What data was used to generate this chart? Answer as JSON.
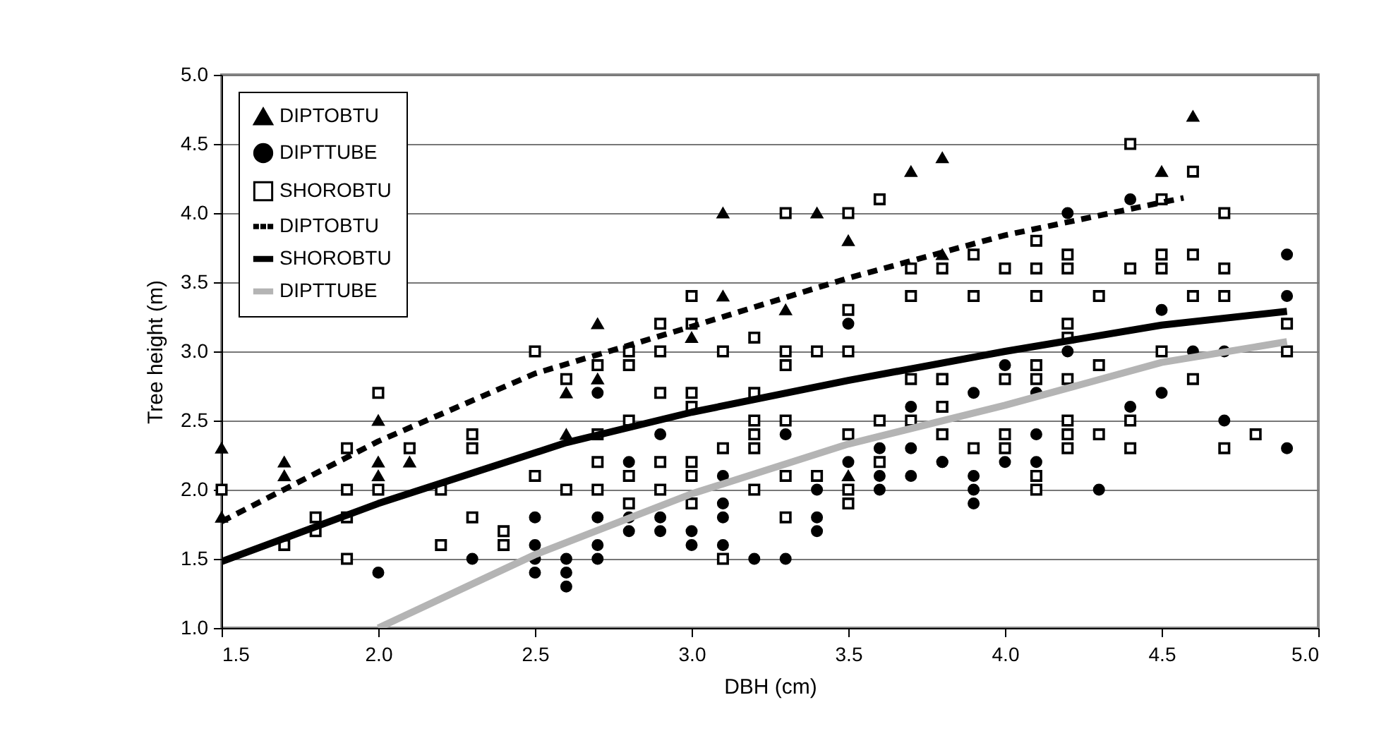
{
  "chart_data": {
    "type": "scatter",
    "xlabel": "DBH (cm)",
    "ylabel": "Tree height (m)",
    "xlim": [
      1.5,
      5.0
    ],
    "ylim": [
      1.0,
      5.0
    ],
    "xticks": [
      {
        "value": 1.5,
        "label": "1.5"
      },
      {
        "value": 2,
        "label": "2.0"
      },
      {
        "value": 2.5,
        "label": "2.5"
      },
      {
        "value": 3,
        "label": "3.0"
      },
      {
        "value": 3.5,
        "label": "3.5"
      },
      {
        "value": 4,
        "label": "4.0"
      },
      {
        "value": 4.5,
        "label": "4.5"
      },
      {
        "value": 5,
        "label": "5.0"
      }
    ],
    "yticks": [
      {
        "value": 1,
        "label": "1.0"
      },
      {
        "value": 1.5,
        "label": "1.5"
      },
      {
        "value": 2,
        "label": "2.0"
      },
      {
        "value": 2.5,
        "label": "2.5"
      },
      {
        "value": 3,
        "label": "3.0"
      },
      {
        "value": 3.5,
        "label": "3.5"
      },
      {
        "value": 4,
        "label": "4.0"
      },
      {
        "value": 4.5,
        "label": "4.5"
      },
      {
        "value": 5,
        "label": "5.0"
      }
    ],
    "grid": "y",
    "legend": "top left",
    "series": [
      {
        "name": "DIPTOBTU",
        "marker": "triangle",
        "color": "#000000",
        "x": [
          1.5,
          1.5,
          1.7,
          1.7,
          2.0,
          2.0,
          2.0,
          2.1,
          2.6,
          2.6,
          2.7,
          2.7,
          3.0,
          3.1,
          3.1,
          3.3,
          3.4,
          3.5,
          3.5,
          3.7,
          3.8,
          3.8,
          4.5,
          4.6
        ],
        "values": [
          2.3,
          1.8,
          2.2,
          2.1,
          2.5,
          2.2,
          2.1,
          2.2,
          2.4,
          2.7,
          3.2,
          2.8,
          3.1,
          3.4,
          4.0,
          3.3,
          4.0,
          3.8,
          2.1,
          4.3,
          4.4,
          3.7,
          4.3,
          4.7
        ]
      },
      {
        "name": "DIPTTUBE",
        "marker": "circle",
        "color": "#000000",
        "x": [
          2.0,
          2.3,
          2.5,
          2.5,
          2.5,
          2.5,
          2.6,
          2.6,
          2.6,
          2.7,
          2.7,
          2.7,
          2.7,
          2.8,
          2.8,
          2.8,
          2.9,
          2.9,
          2.9,
          3.0,
          3.0,
          3.1,
          3.1,
          3.1,
          3.1,
          3.2,
          3.3,
          3.3,
          3.4,
          3.4,
          3.4,
          3.5,
          3.5,
          3.6,
          3.6,
          3.6,
          3.7,
          3.7,
          3.7,
          3.8,
          3.8,
          3.9,
          3.9,
          3.9,
          3.9,
          4.0,
          4.0,
          4.1,
          4.1,
          4.1,
          4.2,
          4.2,
          4.3,
          4.4,
          4.4,
          4.5,
          4.5,
          4.6,
          4.7,
          4.7,
          4.9,
          4.9,
          4.9
        ],
        "values": [
          1.4,
          1.5,
          1.8,
          1.6,
          1.5,
          1.4,
          1.5,
          1.4,
          1.3,
          2.7,
          1.8,
          1.6,
          1.5,
          2.2,
          1.8,
          1.7,
          2.4,
          1.8,
          1.7,
          1.7,
          1.6,
          2.1,
          1.9,
          1.8,
          1.6,
          1.5,
          2.4,
          1.5,
          2.0,
          1.8,
          1.7,
          3.2,
          2.2,
          2.3,
          2.1,
          2.0,
          2.6,
          2.3,
          2.1,
          2.2,
          2.2,
          2.7,
          2.1,
          2.0,
          1.9,
          2.9,
          2.2,
          2.7,
          2.4,
          2.2,
          4.0,
          3.0,
          2.0,
          4.1,
          2.6,
          3.3,
          2.7,
          3.0,
          3.0,
          2.5,
          3.7,
          3.4,
          2.3
        ]
      },
      {
        "name": "SHOROBTU",
        "marker": "square",
        "color": "#000000",
        "x": [
          1.5,
          1.7,
          1.8,
          1.8,
          1.9,
          1.9,
          1.9,
          1.9,
          2.0,
          2.0,
          2.1,
          2.2,
          2.2,
          2.3,
          2.3,
          2.3,
          2.4,
          2.4,
          2.5,
          2.5,
          2.6,
          2.6,
          2.7,
          2.7,
          2.7,
          2.7,
          2.8,
          2.8,
          2.8,
          2.8,
          2.8,
          2.9,
          2.9,
          2.9,
          2.9,
          2.9,
          3.0,
          3.0,
          3.0,
          3.0,
          3.0,
          3.0,
          3.0,
          3.1,
          3.1,
          3.1,
          3.2,
          3.2,
          3.2,
          3.2,
          3.2,
          3.2,
          3.3,
          3.3,
          3.3,
          3.3,
          3.3,
          3.3,
          3.4,
          3.4,
          3.5,
          3.5,
          3.5,
          3.5,
          3.5,
          3.5,
          3.6,
          3.6,
          3.6,
          3.7,
          3.7,
          3.7,
          3.7,
          3.8,
          3.8,
          3.8,
          3.8,
          3.8,
          3.8,
          3.8,
          3.9,
          3.9,
          3.9,
          4.0,
          4.0,
          4.0,
          4.0,
          4.1,
          4.1,
          4.1,
          4.1,
          4.1,
          4.1,
          4.1,
          4.2,
          4.2,
          4.2,
          4.2,
          4.2,
          4.2,
          4.2,
          4.2,
          4.3,
          4.3,
          4.3,
          4.4,
          4.4,
          4.4,
          4.4,
          4.5,
          4.5,
          4.5,
          4.5,
          4.6,
          4.6,
          4.6,
          4.6,
          4.7,
          4.7,
          4.7,
          4.7,
          4.8,
          4.9,
          4.9
        ],
        "values": [
          2.0,
          1.6,
          1.8,
          1.7,
          2.3,
          2.0,
          1.8,
          1.5,
          2.0,
          2.7,
          2.3,
          2.0,
          1.6,
          2.4,
          2.3,
          1.8,
          1.7,
          1.6,
          2.1,
          3.0,
          2.8,
          2.0,
          2.9,
          2.2,
          2.0,
          2.4,
          3.0,
          2.9,
          2.5,
          2.1,
          1.9,
          3.2,
          3.0,
          2.7,
          2.2,
          2.0,
          3.4,
          3.2,
          2.7,
          2.6,
          2.2,
          2.1,
          1.9,
          3.0,
          2.3,
          1.5,
          3.1,
          2.7,
          2.5,
          2.4,
          2.3,
          2.0,
          4.0,
          3.0,
          2.9,
          2.5,
          2.1,
          1.8,
          3.0,
          2.1,
          4.0,
          3.3,
          3.0,
          2.4,
          2.0,
          1.9,
          4.1,
          2.2,
          2.5,
          3.6,
          3.4,
          2.8,
          2.5,
          3.6,
          2.8,
          2.6,
          2.4,
          2.8,
          2.6,
          2.4,
          3.7,
          3.4,
          2.3,
          3.6,
          2.8,
          2.4,
          2.3,
          3.8,
          3.6,
          3.4,
          2.9,
          2.8,
          2.1,
          2.0,
          3.7,
          3.6,
          3.2,
          3.1,
          2.8,
          2.5,
          2.4,
          2.3,
          3.4,
          2.9,
          2.4,
          4.5,
          3.6,
          2.5,
          2.3,
          4.1,
          3.7,
          3.6,
          3.0,
          4.3,
          3.7,
          3.4,
          2.8,
          4.0,
          3.6,
          3.4,
          2.3,
          2.4,
          3.2,
          3.0
        ]
      },
      {
        "name": "DIPTOBTU",
        "type": "line",
        "marker": "none",
        "line_style": "dashed",
        "color": "#000000",
        "x": [
          1.5,
          2.0,
          2.5,
          3.0,
          3.5,
          4.0,
          4.57
        ],
        "values": [
          1.77,
          2.35,
          2.84,
          3.18,
          3.53,
          3.84,
          4.11
        ]
      },
      {
        "name": "SHOROBTU",
        "type": "line",
        "marker": "none",
        "line_style": "solid",
        "color": "#000000",
        "x": [
          1.5,
          2.0,
          2.6,
          3.0,
          3.5,
          4.0,
          4.5,
          4.9
        ],
        "values": [
          1.48,
          1.9,
          2.34,
          2.56,
          2.79,
          3.0,
          3.19,
          3.29
        ]
      },
      {
        "name": "DIPTTUBE",
        "type": "line",
        "marker": "none",
        "line_style": "solid",
        "color": "#b4b4b4",
        "x": [
          2.0,
          2.5,
          3.0,
          3.5,
          4.0,
          4.5,
          4.9
        ],
        "values": [
          1.0,
          1.53,
          1.97,
          2.33,
          2.61,
          2.92,
          3.07
        ]
      }
    ]
  }
}
